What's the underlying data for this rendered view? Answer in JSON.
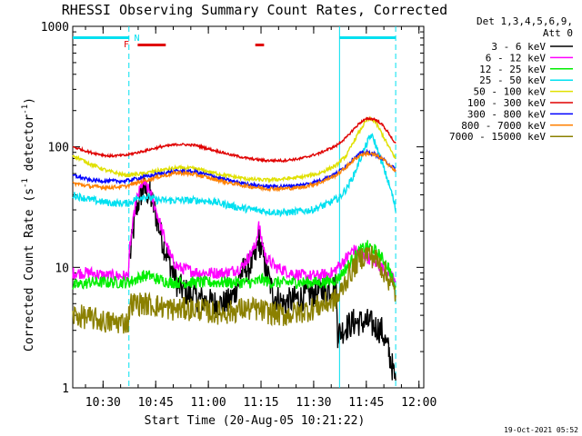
{
  "chart_data": {
    "type": "line",
    "title": "RHESSI Observing Summary Count Rates, Corrected",
    "xlabel": "Start Time (20-Aug-05 10:21:22)",
    "ylabel": "Corrected Count Rate (s⁻¹ detector⁻¹)",
    "ylabel_main": "Corrected Count Rate (s",
    "ylabel_mid": " detector",
    "ylabel_end": ")",
    "ylabel_sup": "-1",
    "yscale": "log",
    "ylim": [
      1,
      1000
    ],
    "xlim_minutes": [
      0,
      100
    ],
    "x_ticks": [
      "10:30",
      "10:45",
      "11:00",
      "11:15",
      "11:30",
      "11:45",
      "12:00"
    ],
    "y_ticks": [
      "1",
      "10",
      "100",
      "1000"
    ],
    "legend_header": [
      "Det 1,3,4,5,6,9,",
      "Att 0"
    ],
    "legend_position": "right",
    "timestamp": "19-Oct-2021 05:52",
    "flags": [
      {
        "label": "",
        "color": "#00e0f0",
        "segments": [
          [
            0,
            16
          ],
          [
            76,
            92
          ]
        ]
      },
      {
        "label": "N",
        "color": "#00e0f0",
        "segments": []
      },
      {
        "label": "F",
        "color": "#e00000",
        "segments": [
          [
            18.5,
            26.5
          ],
          [
            52,
            54.5
          ]
        ]
      }
    ],
    "markers_dashed_x": [
      16,
      92
    ],
    "marker_solid_x": 76,
    "series": [
      {
        "name": "3 - 6 keV",
        "color": "#000000",
        "noise": 0.12,
        "x": [
          0,
          16,
          16.3,
          18,
          20,
          22,
          24,
          26,
          28,
          30,
          33,
          36,
          40,
          44,
          46,
          48,
          50,
          52,
          53,
          55,
          57,
          60,
          64,
          68,
          72,
          75,
          75.5,
          78,
          80,
          84,
          88,
          90,
          91,
          92
        ],
        "y": [
          null,
          null,
          12,
          30,
          45,
          40,
          25,
          15,
          10,
          7,
          6,
          5.5,
          5,
          5,
          6,
          9,
          10,
          12,
          17,
          10,
          6,
          5,
          5.5,
          6,
          6.5,
          7,
          2.8,
          3.2,
          3.5,
          3.5,
          3,
          2,
          1.5,
          1.1
        ]
      },
      {
        "name": "6 - 12 keV",
        "color": "#ff00ff",
        "noise": 0.05,
        "x": [
          0,
          5,
          10,
          15.8,
          16.3,
          18,
          20,
          22,
          24,
          26,
          28,
          30,
          33,
          36,
          40,
          44,
          48,
          50,
          52,
          53,
          55,
          58,
          62,
          66,
          70,
          74,
          75.5,
          78,
          80,
          82,
          84,
          86,
          88,
          90,
          92
        ],
        "y": [
          9,
          9,
          8.5,
          8.5,
          15,
          35,
          52,
          42,
          28,
          18,
          12,
          10,
          9.5,
          9,
          9,
          9,
          10,
          12,
          15,
          22,
          12,
          10,
          9,
          8.5,
          8.5,
          9,
          10,
          12,
          14,
          13,
          12,
          11,
          10,
          9,
          8
        ]
      },
      {
        "name": "12 - 25 keV",
        "color": "#00ee00",
        "noise": 0.05,
        "x": [
          0,
          5,
          10,
          16,
          18,
          20,
          22,
          24,
          28,
          32,
          36,
          40,
          44,
          48,
          52,
          54,
          56,
          60,
          64,
          68,
          72,
          75.5,
          78,
          80,
          82,
          84,
          86,
          88,
          90,
          92
        ],
        "y": [
          7,
          7.5,
          7.5,
          7.5,
          8,
          8.5,
          8.5,
          8,
          7.5,
          7.5,
          7.5,
          7.5,
          7.5,
          7.5,
          7.5,
          8,
          7.5,
          7.5,
          7.5,
          7.5,
          7.5,
          8,
          10,
          12,
          14,
          15,
          14,
          12,
          10,
          6.5
        ]
      },
      {
        "name": "25 - 50 keV",
        "color": "#00e0f0",
        "noise": 0.03,
        "x": [
          0,
          4,
          8,
          12,
          16,
          18,
          20,
          22,
          24,
          28,
          32,
          36,
          40,
          44,
          48,
          52,
          56,
          60,
          64,
          68,
          72,
          76,
          78,
          80,
          82,
          84,
          85,
          86,
          88,
          90,
          91,
          92
        ],
        "y": [
          40,
          37,
          35,
          34,
          34,
          37,
          39,
          38,
          36,
          36,
          36,
          36,
          35,
          33,
          31,
          30,
          29,
          28.5,
          29,
          30,
          33,
          38,
          45,
          58,
          80,
          110,
          125,
          110,
          75,
          50,
          40,
          30
        ]
      },
      {
        "name": "50 - 100 keV",
        "color": "#e0e000",
        "noise": 0.015,
        "x": [
          0,
          5,
          10,
          15,
          20,
          25,
          30,
          35,
          40,
          45,
          50,
          55,
          60,
          65,
          70,
          75,
          78,
          80,
          82,
          84,
          86,
          88,
          90,
          92
        ],
        "y": [
          85,
          72,
          63,
          58,
          60,
          64,
          67,
          66,
          61,
          57,
          54,
          53,
          54,
          56,
          60,
          70,
          85,
          110,
          140,
          170,
          165,
          130,
          100,
          80
        ]
      },
      {
        "name": "100 - 300 keV",
        "color": "#e00000",
        "noise": 0.01,
        "x": [
          0,
          5,
          10,
          15,
          20,
          25,
          30,
          35,
          40,
          45,
          50,
          55,
          60,
          65,
          70,
          75,
          78,
          80,
          82,
          84,
          86,
          88,
          90,
          92
        ],
        "y": [
          100,
          90,
          84,
          85,
          92,
          100,
          105,
          103,
          94,
          86,
          80,
          77,
          77,
          80,
          88,
          102,
          120,
          140,
          160,
          172,
          170,
          155,
          130,
          105
        ]
      },
      {
        "name": "300 - 800 keV",
        "color": "#0000ff",
        "noise": 0.015,
        "x": [
          0,
          5,
          10,
          15,
          20,
          25,
          30,
          35,
          40,
          45,
          50,
          55,
          60,
          65,
          70,
          75,
          78,
          80,
          82,
          84,
          86,
          88,
          90,
          92
        ],
        "y": [
          58,
          53,
          52,
          52,
          56,
          60,
          63,
          62,
          57,
          52,
          49,
          47,
          47,
          48,
          52,
          60,
          70,
          80,
          88,
          90,
          87,
          80,
          72,
          65
        ]
      },
      {
        "name": "800 - 7000 keV",
        "color": "#ff8000",
        "noise": 0.015,
        "x": [
          0,
          5,
          10,
          15,
          20,
          25,
          30,
          35,
          40,
          45,
          50,
          55,
          60,
          65,
          70,
          75,
          78,
          80,
          82,
          84,
          86,
          88,
          90,
          92
        ],
        "y": [
          50,
          47,
          46,
          47,
          52,
          57,
          61,
          59,
          54,
          50,
          47,
          45,
          45,
          46,
          50,
          58,
          68,
          78,
          86,
          88,
          86,
          80,
          72,
          62
        ]
      },
      {
        "name": "7000 - 15000 keV",
        "color": "#8b8000",
        "noise": 0.1,
        "x": [
          0,
          5,
          10,
          15.8,
          16.3,
          20,
          24,
          28,
          32,
          36,
          40,
          44,
          48,
          52,
          56,
          60,
          64,
          68,
          72,
          75.5,
          78,
          80,
          82,
          84,
          86,
          88,
          90,
          92
        ],
        "y": [
          4,
          3.8,
          3.5,
          3.5,
          5,
          5,
          4.8,
          4.5,
          4.5,
          4.5,
          4.2,
          4.2,
          4.5,
          4.5,
          4.2,
          4,
          4.2,
          4.5,
          5,
          5.5,
          8,
          10,
          12,
          13,
          12,
          10,
          8,
          6
        ]
      }
    ]
  }
}
